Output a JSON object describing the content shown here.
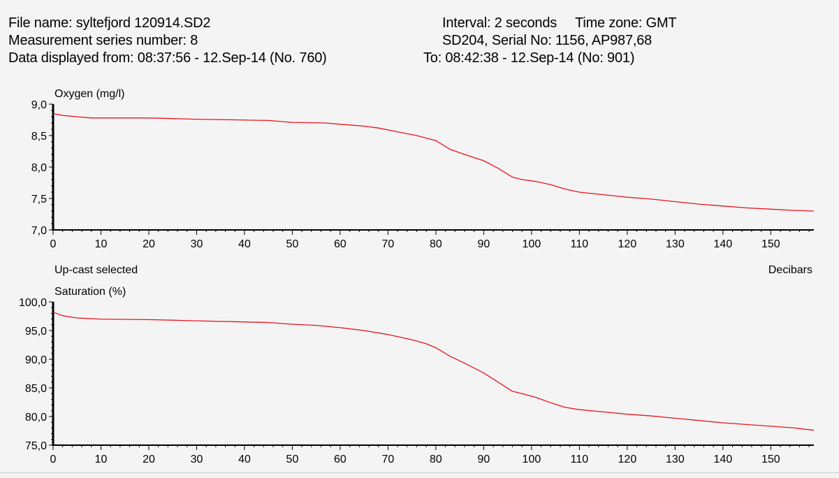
{
  "header": {
    "file_name": "File name: syltefjord 120914.SD2",
    "series_number": "Measurement series number: 8",
    "displayed_from": "Data displayed from: 08:37:56 - 12.Sep-14 (No. 760)",
    "interval": "Interval: 2 seconds",
    "time_zone": "Time zone: GMT",
    "device": "SD204, Serial No: 1156, AP987,68",
    "displayed_to": "To: 08:42:38 - 12.Sep-14 (No: 901)"
  },
  "colors": {
    "line": "#e8141c",
    "axis": "#000000",
    "background": "#f4f4f4"
  },
  "chart_data": [
    {
      "type": "line",
      "title": "Oxygen (mg/l)",
      "xlabel": "",
      "ylabel": "Oxygen (mg/l)",
      "xlim": [
        0,
        159
      ],
      "ylim": [
        7.0,
        9.0
      ],
      "xticks": [
        0,
        10,
        20,
        30,
        40,
        50,
        60,
        70,
        80,
        90,
        100,
        110,
        120,
        130,
        140,
        150
      ],
      "yticks": [
        7.0,
        7.5,
        8.0,
        8.5,
        9.0
      ],
      "ytick_labels": [
        "7,0",
        "7,5",
        "8,0",
        "8,5",
        "9,0"
      ],
      "y_decimals": 1,
      "series": [
        {
          "x": [
            0,
            2,
            5,
            8,
            12,
            20,
            25,
            30,
            38,
            45,
            50,
            57,
            60,
            65,
            68,
            72,
            76,
            80,
            83,
            86,
            90,
            93,
            96,
            98,
            101,
            104,
            107,
            110,
            115,
            120,
            125,
            130,
            135,
            140,
            145,
            150,
            155,
            159
          ],
          "y": [
            8.85,
            8.82,
            8.8,
            8.78,
            8.78,
            8.78,
            8.77,
            8.76,
            8.75,
            8.74,
            8.71,
            8.7,
            8.68,
            8.65,
            8.62,
            8.56,
            8.5,
            8.42,
            8.28,
            8.2,
            8.1,
            7.98,
            7.84,
            7.8,
            7.77,
            7.72,
            7.65,
            7.6,
            7.56,
            7.52,
            7.49,
            7.45,
            7.41,
            7.38,
            7.35,
            7.33,
            7.31,
            7.3
          ]
        }
      ]
    },
    {
      "type": "line",
      "title": "Saturation (%)",
      "xlabel": "Decibars",
      "ylabel": "Saturation (%)",
      "annotation": "Up-cast selected",
      "xlim": [
        0,
        159
      ],
      "ylim": [
        75.0,
        100.0
      ],
      "xticks": [
        0,
        10,
        20,
        30,
        40,
        50,
        60,
        70,
        80,
        90,
        100,
        110,
        120,
        130,
        140,
        150
      ],
      "yticks": [
        75.0,
        80.0,
        85.0,
        90.0,
        95.0,
        100.0
      ],
      "ytick_labels": [
        "75,0",
        "80,0",
        "85,0",
        "90,0",
        "95,0",
        "100,0"
      ],
      "y_decimals": 1,
      "series": [
        {
          "x": [
            0,
            2,
            5,
            10,
            20,
            25,
            30,
            40,
            45,
            50,
            55,
            60,
            65,
            70,
            75,
            78,
            80,
            83,
            86,
            90,
            93,
            96,
            98,
            101,
            104,
            107,
            110,
            115,
            120,
            125,
            130,
            135,
            140,
            145,
            150,
            155,
            159
          ],
          "y": [
            98.2,
            97.6,
            97.2,
            97.0,
            96.9,
            96.8,
            96.7,
            96.5,
            96.4,
            96.1,
            95.9,
            95.5,
            95.0,
            94.3,
            93.4,
            92.7,
            92.0,
            90.5,
            89.3,
            87.6,
            86.0,
            84.4,
            84.0,
            83.3,
            82.4,
            81.6,
            81.2,
            80.8,
            80.4,
            80.1,
            79.7,
            79.3,
            78.9,
            78.6,
            78.3,
            78.0,
            77.6
          ]
        }
      ]
    }
  ]
}
